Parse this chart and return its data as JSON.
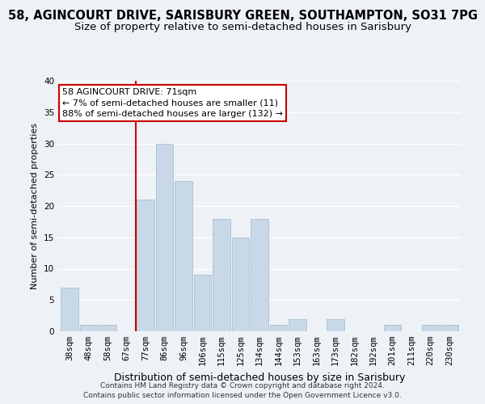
{
  "title1": "58, AGINCOURT DRIVE, SARISBURY GREEN, SOUTHAMPTON, SO31 7PG",
  "title2": "Size of property relative to semi-detached houses in Sarisbury",
  "xlabel": "Distribution of semi-detached houses by size in Sarisbury",
  "ylabel": "Number of semi-detached properties",
  "categories": [
    "38sqm",
    "48sqm",
    "58sqm",
    "67sqm",
    "77sqm",
    "86sqm",
    "96sqm",
    "106sqm",
    "115sqm",
    "125sqm",
    "134sqm",
    "144sqm",
    "153sqm",
    "163sqm",
    "173sqm",
    "182sqm",
    "192sqm",
    "201sqm",
    "211sqm",
    "220sqm",
    "230sqm"
  ],
  "values": [
    7,
    1,
    1,
    0,
    21,
    30,
    24,
    9,
    18,
    15,
    18,
    1,
    2,
    0,
    2,
    0,
    0,
    1,
    0,
    1,
    1
  ],
  "bar_color": "#c8d8e8",
  "bar_edge_color": "#a8bfcf",
  "vline_color": "#cc0000",
  "vline_x_index": 4,
  "ylim": [
    0,
    40
  ],
  "yticks": [
    0,
    5,
    10,
    15,
    20,
    25,
    30,
    35,
    40
  ],
  "annotation_title": "58 AGINCOURT DRIVE: 71sqm",
  "annotation_line1": "← 7% of semi-detached houses are smaller (11)",
  "annotation_line2": "88% of semi-detached houses are larger (132) →",
  "footer1": "Contains HM Land Registry data © Crown copyright and database right 2024.",
  "footer2": "Contains public sector information licensed under the Open Government Licence v3.0.",
  "background_color": "#eef2f7",
  "grid_color": "#ffffff",
  "title1_fontsize": 10.5,
  "title2_fontsize": 9.5,
  "xlabel_fontsize": 9,
  "ylabel_fontsize": 8,
  "tick_fontsize": 7.5,
  "annotation_fontsize": 8,
  "footer_fontsize": 6.5
}
